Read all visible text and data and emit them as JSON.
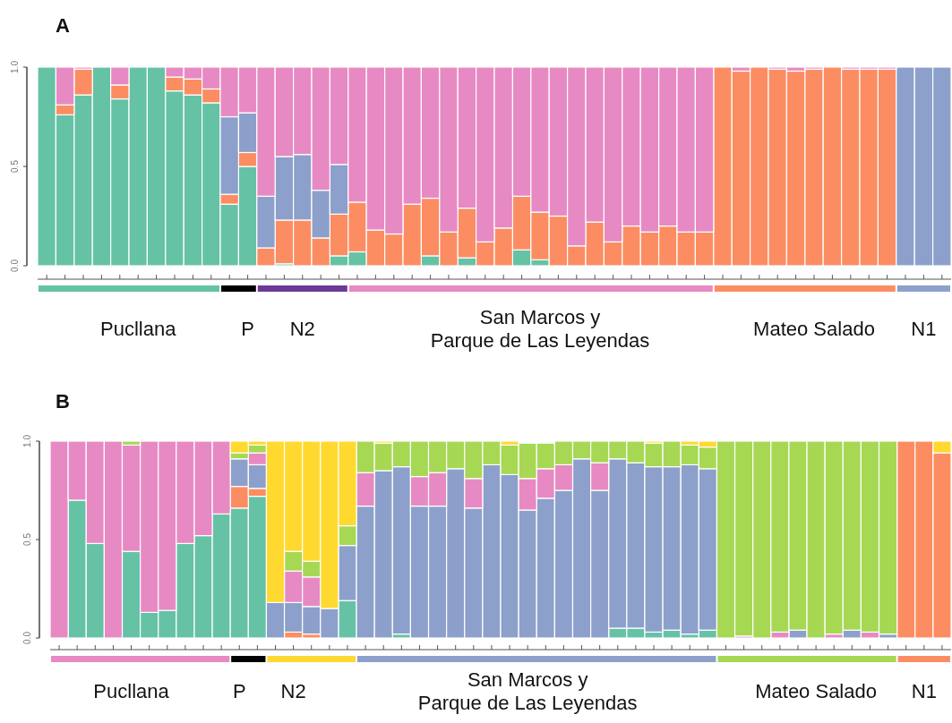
{
  "chart_data": [
    {
      "type": "bar",
      "title": "A",
      "stacked": true,
      "ylim": [
        0,
        1
      ],
      "yticks": [
        {
          "value": 0,
          "label": "0.0"
        },
        {
          "value": 0.5,
          "label": "0.5"
        },
        {
          "value": 1,
          "label": "1.0"
        }
      ],
      "categories": [
        null,
        null,
        null,
        null,
        null,
        "Pucllana",
        null,
        null,
        null,
        null,
        null,
        "P",
        null,
        null,
        "N2",
        null,
        null,
        null,
        null,
        null,
        null,
        null,
        null,
        null,
        null,
        null,
        null,
        "San Marcos y\nParque de Las Leyendas",
        null,
        null,
        null,
        null,
        null,
        null,
        null,
        null,
        null,
        null,
        null,
        null,
        null,
        null,
        "Mateo Salado",
        null,
        null,
        null,
        null,
        null,
        "N1",
        null
      ],
      "series": [
        {
          "color": "#66c2a5",
          "values": [
            1,
            0.76,
            0.86,
            1,
            0.84,
            1,
            1,
            0.88,
            0.86,
            0.82,
            0.31,
            0.5,
            0,
            0.01,
            0,
            0,
            0.05,
            0.07,
            0,
            0,
            0,
            0.05,
            0,
            0.04,
            0,
            0,
            0.08,
            0.03,
            0,
            0,
            0,
            0,
            0,
            0,
            0,
            0,
            0,
            0,
            0,
            0,
            0,
            0,
            0,
            0,
            0,
            0,
            0,
            0,
            0,
            0
          ]
        },
        {
          "color": "#fc8d62",
          "values": [
            0,
            0.05,
            0.13,
            0,
            0.07,
            0,
            0,
            0.07,
            0.08,
            0.07,
            0.05,
            0.07,
            0.09,
            0.22,
            0.23,
            0.14,
            0.21,
            0.25,
            0.18,
            0.16,
            0.31,
            0.29,
            0.17,
            0.25,
            0.12,
            0.19,
            0.27,
            0.24,
            0.25,
            0.1,
            0.22,
            0.12,
            0.2,
            0.17,
            0.2,
            0.17,
            0.17,
            1,
            0.98,
            1,
            0.99,
            0.98,
            0.99,
            1,
            0.99,
            0.99,
            0.99,
            0,
            0,
            0
          ]
        },
        {
          "color": "#8da0cb",
          "values": [
            0,
            0,
            0,
            0,
            0,
            0,
            0,
            0,
            0,
            0,
            0.39,
            0.2,
            0.26,
            0.32,
            0.33,
            0.24,
            0.25,
            0,
            0,
            0,
            0,
            0,
            0,
            0,
            0,
            0,
            0,
            0,
            0,
            0,
            0,
            0,
            0,
            0,
            0,
            0,
            0,
            0,
            0,
            0,
            0,
            0,
            0,
            0,
            0,
            0,
            0,
            1,
            1,
            1
          ]
        },
        {
          "color": "#e78ac3",
          "values": [
            0,
            0.19,
            0.01,
            0,
            0.09,
            0,
            0,
            0.05,
            0.06,
            0.11,
            0.25,
            0.23,
            0.65,
            0.45,
            0.44,
            0.62,
            0.49,
            0.68,
            0.82,
            0.84,
            0.69,
            0.66,
            0.83,
            0.71,
            0.88,
            0.81,
            0.65,
            0.73,
            0.75,
            0.9,
            0.78,
            0.88,
            0.8,
            0.83,
            0.8,
            0.83,
            0.83,
            0,
            0.02,
            0,
            0.01,
            0.02,
            0.01,
            0,
            0.01,
            0.01,
            0.01,
            0,
            0,
            0
          ]
        }
      ]
    },
    {
      "type": "bar",
      "title": "B",
      "stacked": true,
      "ylim": [
        0,
        1
      ],
      "yticks": [
        {
          "value": 0,
          "label": "0.0"
        },
        {
          "value": 0.5,
          "label": "0.5"
        },
        {
          "value": 1,
          "label": "1.0"
        }
      ],
      "categories": [
        null,
        null,
        null,
        null,
        "Pucllana",
        null,
        null,
        null,
        null,
        null,
        "P",
        null,
        null,
        "N2",
        null,
        null,
        null,
        null,
        null,
        null,
        null,
        null,
        null,
        null,
        null,
        null,
        "San Marcos y\nParque de Las Leyendas",
        null,
        null,
        null,
        null,
        null,
        null,
        null,
        null,
        null,
        null,
        null,
        null,
        null,
        null,
        null,
        "Mateo Salado",
        null,
        null,
        null,
        null,
        null,
        "N1",
        null
      ],
      "series": [
        {
          "color": "#66c2a5",
          "values": [
            0,
            0.7,
            0.48,
            0,
            0.44,
            0.13,
            0.14,
            0.48,
            0.52,
            0.63,
            0.66,
            0.72,
            0,
            0,
            0,
            0,
            0.19,
            0,
            0,
            0.02,
            0,
            0,
            0,
            0,
            0,
            0,
            0,
            0,
            0,
            0,
            0,
            0.05,
            0.05,
            0.03,
            0.04,
            0.02,
            0.04,
            0,
            0,
            0,
            0,
            0,
            0,
            0,
            0,
            0,
            0,
            0,
            0,
            0
          ]
        },
        {
          "color": "#fc8d62",
          "values": [
            0,
            0,
            0,
            0,
            0,
            0,
            0,
            0,
            0,
            0,
            0.11,
            0.04,
            0,
            0.03,
            0.02,
            0,
            0,
            0,
            0,
            0,
            0,
            0,
            0,
            0,
            0,
            0,
            0,
            0,
            0,
            0,
            0,
            0,
            0,
            0,
            0,
            0,
            0,
            0,
            0,
            0,
            0,
            0,
            0,
            0,
            0,
            0,
            0,
            1,
            1,
            0.94
          ]
        },
        {
          "color": "#8da0cb",
          "values": [
            0,
            0,
            0,
            0,
            0,
            0,
            0,
            0,
            0,
            0,
            0.14,
            0.12,
            0.18,
            0.15,
            0.14,
            0.15,
            0.28,
            0.67,
            0.85,
            0.85,
            0.67,
            0.67,
            0.86,
            0.66,
            0.88,
            0.83,
            0.65,
            0.71,
            0.75,
            0.91,
            0.75,
            0.86,
            0.84,
            0.84,
            0.83,
            0.86,
            0.82,
            0,
            0,
            0,
            0,
            0.04,
            0,
            0,
            0.04,
            0,
            0.02,
            0,
            0,
            0
          ]
        },
        {
          "color": "#e78ac3",
          "values": [
            1,
            0.3,
            0.52,
            1,
            0.54,
            0.87,
            0.86,
            0.52,
            0.48,
            0.37,
            0,
            0.06,
            0,
            0.16,
            0.15,
            0,
            0,
            0.17,
            0,
            0,
            0.15,
            0.17,
            0,
            0.15,
            0,
            0,
            0.16,
            0.15,
            0.13,
            0,
            0.14,
            0,
            0,
            0,
            0,
            0,
            0,
            0,
            0.01,
            0,
            0.03,
            0,
            0,
            0.02,
            0,
            0.03,
            0,
            0,
            0,
            0
          ]
        },
        {
          "color": "#a6d854",
          "values": [
            0,
            0,
            0,
            0,
            0.02,
            0,
            0,
            0,
            0,
            0,
            0.03,
            0.04,
            0,
            0.1,
            0.08,
            0,
            0.1,
            0.16,
            0.14,
            0.13,
            0.18,
            0.16,
            0.14,
            0.19,
            0.12,
            0.15,
            0.18,
            0.13,
            0.12,
            0.09,
            0.11,
            0.09,
            0.11,
            0.12,
            0.13,
            0.1,
            0.11,
            1,
            0.99,
            1,
            0.97,
            0.96,
            1,
            0.98,
            0.96,
            0.97,
            0.98,
            0,
            0,
            0
          ]
        },
        {
          "color": "#ffd92f",
          "values": [
            0,
            0,
            0,
            0,
            0,
            0,
            0,
            0,
            0,
            0,
            0.06,
            0.02,
            0.82,
            0.56,
            0.61,
            0.85,
            0.43,
            0,
            0.01,
            0,
            0,
            0,
            0,
            0,
            0,
            0.02,
            0,
            0,
            0,
            0,
            0,
            0,
            0,
            0.01,
            0,
            0.02,
            0.03,
            0,
            0,
            0,
            0,
            0,
            0,
            0,
            0,
            0,
            0,
            0,
            0,
            0.06
          ]
        }
      ]
    }
  ]
}
